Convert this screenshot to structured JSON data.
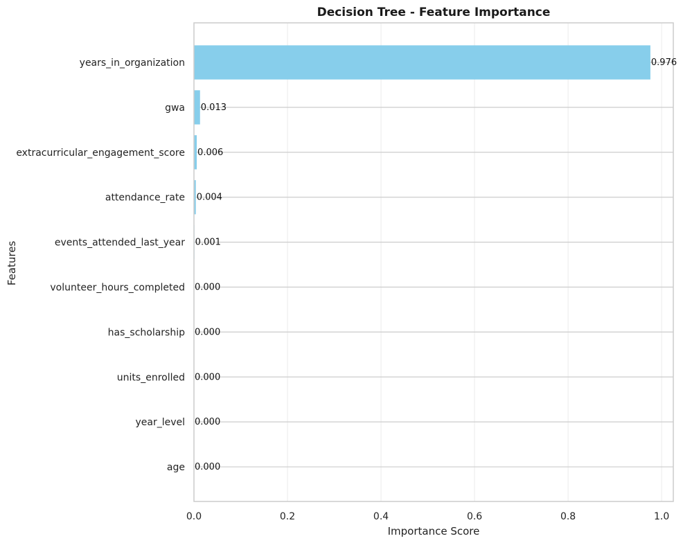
{
  "chart_data": {
    "type": "bar",
    "orientation": "horizontal",
    "title": "Decision Tree - Feature Importance",
    "xlabel": "Importance Score",
    "ylabel": "Features",
    "categories": [
      "years_in_organization",
      "gwa",
      "extracurricular_engagement_score",
      "attendance_rate",
      "events_attended_last_year",
      "volunteer_hours_completed",
      "has_scholarship",
      "units_enrolled",
      "year_level",
      "age"
    ],
    "values": [
      0.976,
      0.013,
      0.006,
      0.004,
      0.001,
      0.0,
      0.0,
      0.0,
      0.0,
      0.0
    ],
    "value_labels": [
      "0.976",
      "0.013",
      "0.006",
      "0.004",
      "0.001",
      "0.000",
      "0.000",
      "0.000",
      "0.000",
      "0.000"
    ],
    "xticks": [
      0.0,
      0.2,
      0.4,
      0.6,
      0.8,
      1.0
    ],
    "xtick_labels": [
      "0.0",
      "0.2",
      "0.4",
      "0.6",
      "0.8",
      "1.0"
    ],
    "xlim": [
      0,
      1.025
    ],
    "grid": true,
    "colors": {
      "bar": "#87ceeb",
      "frame": "#cccccc",
      "grid": "#cccccc"
    }
  }
}
